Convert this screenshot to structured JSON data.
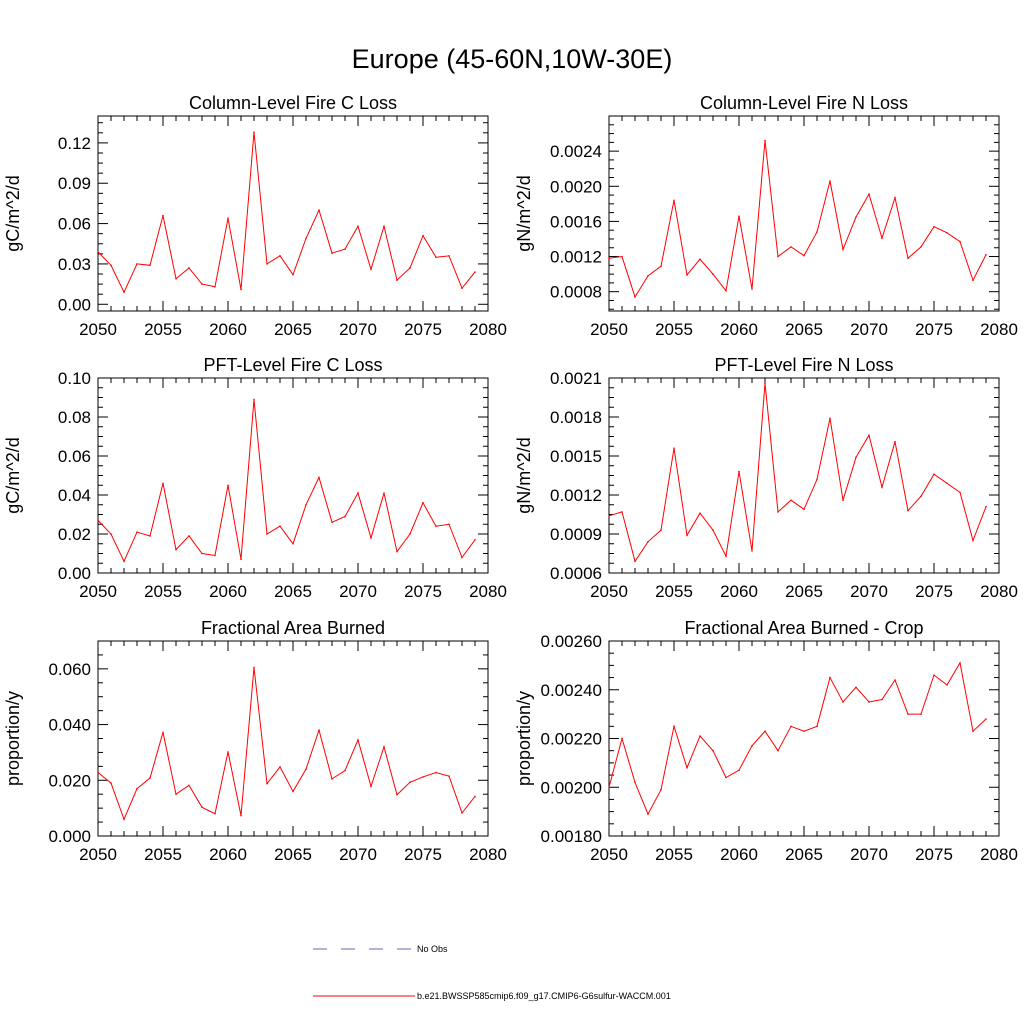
{
  "title": "Europe (45-60N,10W-30E)",
  "colors": {
    "series": "#ff0000",
    "obs": "#6666aa",
    "axis": "#000000"
  },
  "legend": {
    "items": [
      {
        "label": "No Obs",
        "style": "dashed",
        "color": "#6666aa"
      },
      {
        "label": "b.e21.BWSSP585cmip6.f09_g17.CMIP6-G6sulfur-WACCM.001",
        "style": "solid",
        "color": "#ff0000"
      }
    ]
  },
  "chart_data": [
    {
      "type": "line",
      "title": "Column-Level Fire C Loss",
      "ylabel": "gC/m^2/d",
      "xlim": [
        2050,
        2080
      ],
      "ylim": [
        -0.005,
        0.14
      ],
      "xticks": [
        2050,
        2055,
        2060,
        2065,
        2070,
        2075,
        2080
      ],
      "xtick_labels": [
        "2050",
        "2055",
        "2060",
        "2065",
        "2070",
        "2075",
        "2080"
      ],
      "yticks": [
        0.0,
        0.03,
        0.06,
        0.09,
        0.12
      ],
      "ytick_labels": [
        "0.00",
        "0.03",
        "0.06",
        "0.09",
        "0.12"
      ],
      "x": [
        2050,
        2051,
        2052,
        2053,
        2054,
        2055,
        2056,
        2057,
        2058,
        2059,
        2060,
        2061,
        2062,
        2063,
        2064,
        2065,
        2066,
        2067,
        2068,
        2069,
        2070,
        2071,
        2072,
        2073,
        2074,
        2075,
        2076,
        2077,
        2078,
        2079
      ],
      "values": [
        0.039,
        0.029,
        0.009,
        0.03,
        0.029,
        0.066,
        0.019,
        0.027,
        0.015,
        0.013,
        0.064,
        0.011,
        0.128,
        0.03,
        0.036,
        0.022,
        0.049,
        0.07,
        0.038,
        0.041,
        0.058,
        0.026,
        0.058,
        0.018,
        0.027,
        0.051,
        0.035,
        0.036,
        0.012,
        0.024
      ]
    },
    {
      "type": "line",
      "title": "Column-Level Fire N Loss",
      "ylabel": "gN/m^2/d",
      "xlim": [
        2050,
        2080
      ],
      "ylim": [
        0.00058,
        0.0028
      ],
      "xticks": [
        2050,
        2055,
        2060,
        2065,
        2070,
        2075,
        2080
      ],
      "xtick_labels": [
        "2050",
        "2055",
        "2060",
        "2065",
        "2070",
        "2075",
        "2080"
      ],
      "yticks": [
        0.0008,
        0.0012,
        0.0016,
        0.002,
        0.0024
      ],
      "ytick_labels": [
        "0.0008",
        "0.0012",
        "0.0016",
        "0.0020",
        "0.0024"
      ],
      "x": [
        2050,
        2051,
        2052,
        2053,
        2054,
        2055,
        2056,
        2057,
        2058,
        2059,
        2060,
        2061,
        2062,
        2063,
        2064,
        2065,
        2066,
        2067,
        2068,
        2069,
        2070,
        2071,
        2072,
        2073,
        2074,
        2075,
        2076,
        2077,
        2078,
        2079
      ],
      "values": [
        0.00118,
        0.0012,
        0.00074,
        0.00098,
        0.00109,
        0.00184,
        0.00099,
        0.00117,
        0.001,
        0.00081,
        0.00166,
        0.00083,
        0.00252,
        0.0012,
        0.00131,
        0.00121,
        0.00148,
        0.00206,
        0.00128,
        0.00165,
        0.00191,
        0.00141,
        0.00187,
        0.00118,
        0.00131,
        0.00154,
        0.00147,
        0.00137,
        0.00093,
        0.00122
      ]
    },
    {
      "type": "line",
      "title": "PFT-Level Fire C Loss",
      "ylabel": "gC/m^2/d",
      "xlim": [
        2050,
        2080
      ],
      "ylim": [
        0.0,
        0.1
      ],
      "xticks": [
        2050,
        2055,
        2060,
        2065,
        2070,
        2075,
        2080
      ],
      "xtick_labels": [
        "2050",
        "2055",
        "2060",
        "2065",
        "2070",
        "2075",
        "2080"
      ],
      "yticks": [
        0.0,
        0.02,
        0.04,
        0.06,
        0.08,
        0.1
      ],
      "ytick_labels": [
        "0.00",
        "0.02",
        "0.04",
        "0.06",
        "0.08",
        "0.10"
      ],
      "x": [
        2050,
        2051,
        2052,
        2053,
        2054,
        2055,
        2056,
        2057,
        2058,
        2059,
        2060,
        2061,
        2062,
        2063,
        2064,
        2065,
        2066,
        2067,
        2068,
        2069,
        2070,
        2071,
        2072,
        2073,
        2074,
        2075,
        2076,
        2077,
        2078,
        2079
      ],
      "values": [
        0.027,
        0.02,
        0.006,
        0.021,
        0.019,
        0.046,
        0.012,
        0.019,
        0.01,
        0.009,
        0.045,
        0.007,
        0.089,
        0.02,
        0.024,
        0.015,
        0.035,
        0.049,
        0.026,
        0.029,
        0.041,
        0.018,
        0.041,
        0.011,
        0.02,
        0.036,
        0.024,
        0.025,
        0.008,
        0.017
      ]
    },
    {
      "type": "line",
      "title": "PFT-Level Fire N Loss",
      "ylabel": "gN/m^2/d",
      "xlim": [
        2050,
        2080
      ],
      "ylim": [
        0.0006,
        0.0021
      ],
      "xticks": [
        2050,
        2055,
        2060,
        2065,
        2070,
        2075,
        2080
      ],
      "xtick_labels": [
        "2050",
        "2055",
        "2060",
        "2065",
        "2070",
        "2075",
        "2080"
      ],
      "yticks": [
        0.0006,
        0.0009,
        0.0012,
        0.0015,
        0.0018,
        0.0021
      ],
      "ytick_labels": [
        "0.0006",
        "0.0009",
        "0.0012",
        "0.0015",
        "0.0018",
        "0.0021"
      ],
      "x": [
        2050,
        2051,
        2052,
        2053,
        2054,
        2055,
        2056,
        2057,
        2058,
        2059,
        2060,
        2061,
        2062,
        2063,
        2064,
        2065,
        2066,
        2067,
        2068,
        2069,
        2070,
        2071,
        2072,
        2073,
        2074,
        2075,
        2076,
        2077,
        2078,
        2079
      ],
      "values": [
        0.00104,
        0.00107,
        0.00069,
        0.00084,
        0.00093,
        0.00156,
        0.00089,
        0.00106,
        0.00093,
        0.00073,
        0.00138,
        0.00077,
        0.00206,
        0.00107,
        0.00116,
        0.00109,
        0.00132,
        0.00179,
        0.00116,
        0.00149,
        0.00166,
        0.00126,
        0.00161,
        0.00108,
        0.00119,
        0.00136,
        0.00129,
        0.00122,
        0.00085,
        0.00111
      ]
    },
    {
      "type": "line",
      "title": "Fractional Area Burned",
      "ylabel": "proportion/y",
      "xlim": [
        2050,
        2080
      ],
      "ylim": [
        0.0,
        0.07
      ],
      "xticks": [
        2050,
        2055,
        2060,
        2065,
        2070,
        2075,
        2080
      ],
      "xtick_labels": [
        "2050",
        "2055",
        "2060",
        "2065",
        "2070",
        "2075",
        "2080"
      ],
      "yticks": [
        0.0,
        0.02,
        0.04,
        0.06
      ],
      "ytick_labels": [
        "0.000",
        "0.020",
        "0.040",
        "0.060"
      ],
      "x": [
        2050,
        2051,
        2052,
        2053,
        2054,
        2055,
        2056,
        2057,
        2058,
        2059,
        2060,
        2061,
        2062,
        2063,
        2064,
        2065,
        2066,
        2067,
        2068,
        2069,
        2070,
        2071,
        2072,
        2073,
        2074,
        2075,
        2076,
        2077,
        2078,
        2079
      ],
      "values": [
        0.0228,
        0.019,
        0.006,
        0.017,
        0.0208,
        0.0372,
        0.015,
        0.0182,
        0.0103,
        0.008,
        0.0302,
        0.0073,
        0.0605,
        0.0188,
        0.0248,
        0.016,
        0.024,
        0.038,
        0.0205,
        0.0235,
        0.0345,
        0.0178,
        0.032,
        0.0148,
        0.0193,
        0.0212,
        0.0228,
        0.0215,
        0.0083,
        0.0142
      ]
    },
    {
      "type": "line",
      "title": "Fractional Area Burned - Crop",
      "ylabel": "proportion/y",
      "xlim": [
        2050,
        2080
      ],
      "ylim": [
        0.0018,
        0.0026
      ],
      "xticks": [
        2050,
        2055,
        2060,
        2065,
        2070,
        2075,
        2080
      ],
      "xtick_labels": [
        "2050",
        "2055",
        "2060",
        "2065",
        "2070",
        "2075",
        "2080"
      ],
      "yticks": [
        0.0018,
        0.002,
        0.0022,
        0.0024,
        0.0026
      ],
      "ytick_labels": [
        "0.00180",
        "0.00200",
        "0.00220",
        "0.00240",
        "0.00260"
      ],
      "x": [
        2050,
        2051,
        2052,
        2053,
        2054,
        2055,
        2056,
        2057,
        2058,
        2059,
        2060,
        2061,
        2062,
        2063,
        2064,
        2065,
        2066,
        2067,
        2068,
        2069,
        2070,
        2071,
        2072,
        2073,
        2074,
        2075,
        2076,
        2077,
        2078,
        2079
      ],
      "values": [
        0.002,
        0.0022,
        0.00202,
        0.00189,
        0.00199,
        0.00225,
        0.00208,
        0.00221,
        0.00215,
        0.00204,
        0.00207,
        0.00217,
        0.00223,
        0.00215,
        0.00225,
        0.00223,
        0.00225,
        0.00245,
        0.00235,
        0.00241,
        0.00235,
        0.00236,
        0.00244,
        0.0023,
        0.0023,
        0.00246,
        0.00242,
        0.00251,
        0.00223,
        0.00228
      ]
    }
  ]
}
